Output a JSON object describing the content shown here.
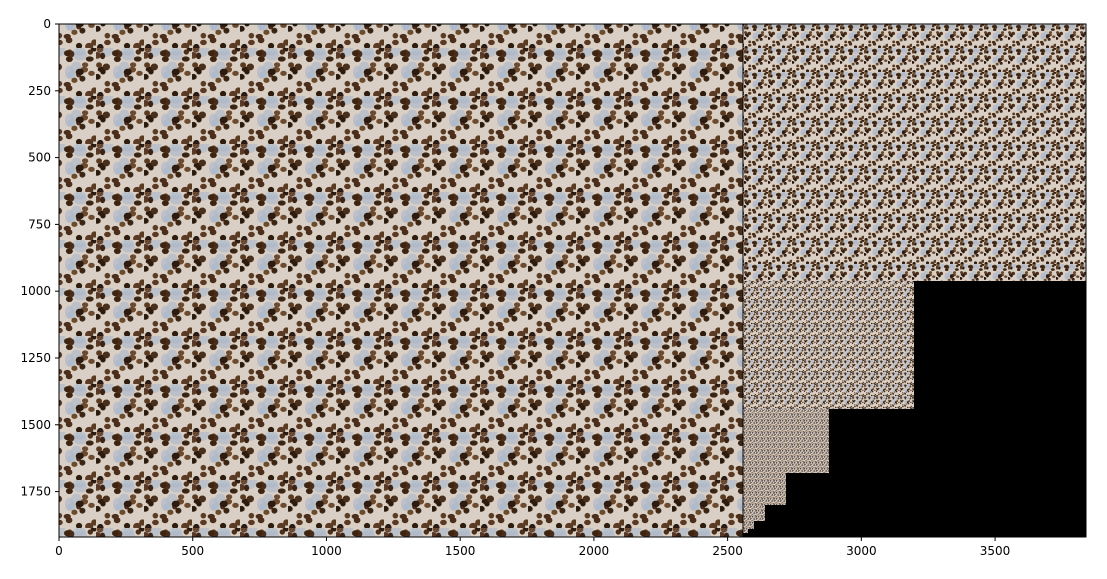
{
  "chart_data": {
    "type": "image",
    "xlim": [
      0,
      3840
    ],
    "ylim": [
      1920,
      0
    ],
    "xticks": [
      0,
      500,
      1000,
      1500,
      2000,
      2500,
      3000,
      3500
    ],
    "yticks": [
      0,
      250,
      500,
      750,
      1000,
      1250,
      1500,
      1750
    ]
  }
}
